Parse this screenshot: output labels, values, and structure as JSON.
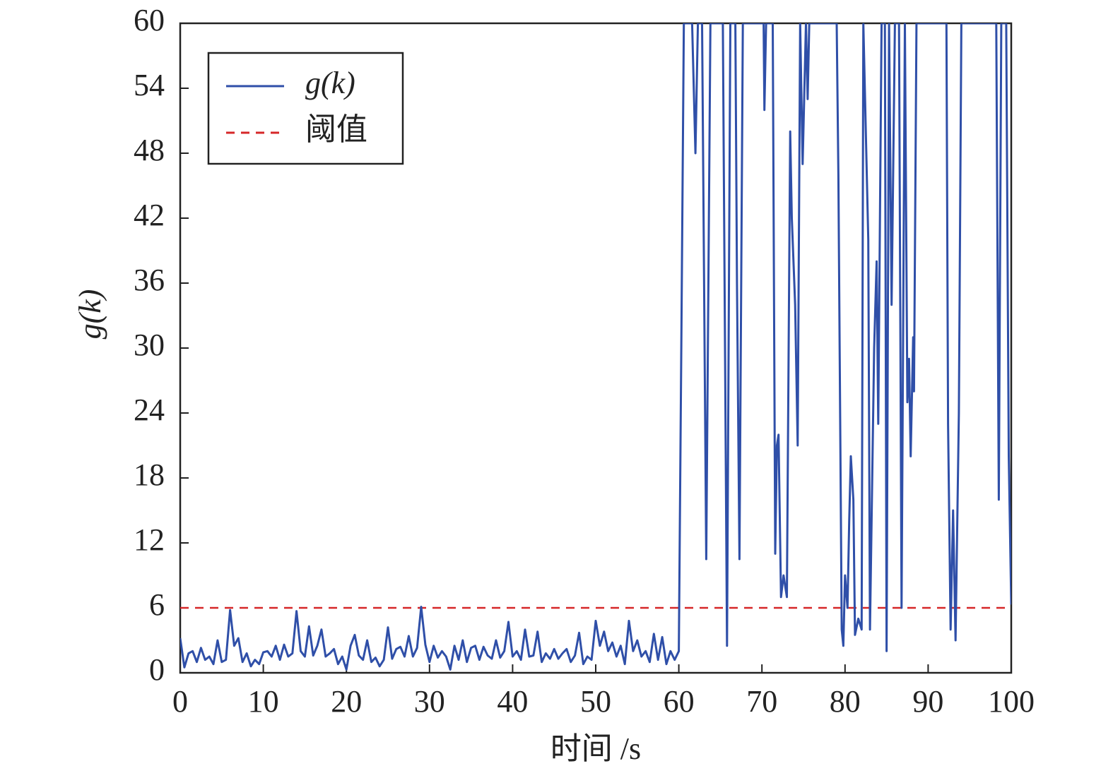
{
  "chart_data": {
    "type": "line",
    "xlabel": "时间 /s",
    "ylabel": "g(k)",
    "xlim": [
      0,
      100
    ],
    "ylim": [
      0,
      60
    ],
    "xticks": [
      0,
      10,
      20,
      30,
      40,
      50,
      60,
      70,
      80,
      90,
      100
    ],
    "yticks": [
      0,
      6,
      12,
      18,
      24,
      30,
      36,
      42,
      48,
      54,
      60
    ],
    "legend": "upper left",
    "x": [
      0,
      0.5,
      1,
      1.5,
      2,
      2.5,
      3,
      3.5,
      4,
      4.5,
      5,
      5.5,
      6,
      6.5,
      7,
      7.5,
      8,
      8.5,
      9,
      9.5,
      10,
      10.5,
      11,
      11.5,
      12,
      12.5,
      13,
      13.5,
      14,
      14.5,
      15,
      15.5,
      16,
      16.5,
      17,
      17.5,
      18,
      18.5,
      19,
      19.5,
      20,
      20.5,
      21,
      21.5,
      22,
      22.5,
      23,
      23.5,
      24,
      24.5,
      25,
      25.5,
      26,
      26.5,
      27,
      27.5,
      28,
      28.5,
      29,
      29.5,
      30,
      30.5,
      31,
      31.5,
      32,
      32.5,
      33,
      33.5,
      34,
      34.5,
      35,
      35.5,
      36,
      36.5,
      37,
      37.5,
      38,
      38.5,
      39,
      39.5,
      40,
      40.5,
      41,
      41.5,
      42,
      42.5,
      43,
      43.5,
      44,
      44.5,
      45,
      45.5,
      46,
      46.5,
      47,
      47.5,
      48,
      48.5,
      49,
      49.5,
      50,
      50.5,
      51,
      51.5,
      52,
      52.5,
      53,
      53.5,
      54,
      54.5,
      55,
      55.5,
      56,
      56.5,
      57,
      57.5,
      58,
      58.5,
      59,
      59.5,
      60,
      60.3,
      60.6,
      61,
      61.6,
      62,
      62.3,
      62.8,
      63.3,
      63.8,
      64.5,
      65.3,
      65.8,
      66.2,
      66.8,
      67,
      67.3,
      67.7,
      70.2,
      70.3,
      70.5,
      71.3,
      71.6,
      71.8,
      72,
      72.3,
      72.6,
      73,
      73.4,
      73.6,
      74,
      74.3,
      74.6,
      74.9,
      75.3,
      75.5,
      75.7,
      79,
      79.2,
      79.6,
      79.8,
      80,
      80.3,
      80.5,
      80.7,
      81,
      81.2,
      81.6,
      82,
      82.2,
      82.8,
      83,
      83.5,
      83.8,
      84,
      84.4,
      84.8,
      85,
      85.3,
      85.6,
      86,
      86.5,
      86.8,
      87.2,
      87.5,
      87.7,
      87.9,
      88.2,
      88.3,
      88.6,
      92.2,
      92.4,
      92.7,
      93,
      93.3,
      93.7,
      94,
      98.2,
      98.5,
      98.8,
      99.4,
      99.7,
      100
    ],
    "series": [
      {
        "name": "g(k)",
        "color": "#2f4fa8",
        "values": [
          3.2,
          0.5,
          1.8,
          2.0,
          1.0,
          2.3,
          1.2,
          1.5,
          0.8,
          3.0,
          1.0,
          1.2,
          5.8,
          2.5,
          3.2,
          1.0,
          1.8,
          0.6,
          1.2,
          0.8,
          1.9,
          2.0,
          1.5,
          2.5,
          1.2,
          2.6,
          1.5,
          1.8,
          5.7,
          2.0,
          1.5,
          4.3,
          1.6,
          2.5,
          4.0,
          1.5,
          1.8,
          2.2,
          0.8,
          1.5,
          0.3,
          2.5,
          3.5,
          1.6,
          1.2,
          3.0,
          1.0,
          1.4,
          0.6,
          1.2,
          4.2,
          1.3,
          2.2,
          2.4,
          1.5,
          3.4,
          1.5,
          2.3,
          6.1,
          2.6,
          1.0,
          2.5,
          1.4,
          2.0,
          1.5,
          0.3,
          2.5,
          1.2,
          3.0,
          1.0,
          2.3,
          2.5,
          1.2,
          2.4,
          1.6,
          1.3,
          3.0,
          1.4,
          2.0,
          4.7,
          1.5,
          2.0,
          1.2,
          4.0,
          1.5,
          1.6,
          3.8,
          1.0,
          1.8,
          1.3,
          2.2,
          1.3,
          1.8,
          2.2,
          1.0,
          1.6,
          3.7,
          0.8,
          1.5,
          1.2,
          4.8,
          2.5,
          3.8,
          2.0,
          2.8,
          1.5,
          2.5,
          0.8,
          4.8,
          2.0,
          3.0,
          1.5,
          2.0,
          1.0,
          3.6,
          1.2,
          3.3,
          0.8,
          2.0,
          1.2,
          2.0,
          30,
          60,
          60,
          60,
          48,
          60,
          60,
          10.5,
          60,
          60,
          60,
          2.5,
          60,
          60,
          36,
          10.5,
          60,
          60,
          52,
          60,
          60,
          11,
          21,
          22,
          7,
          9,
          7,
          50,
          42,
          34,
          21,
          60,
          47,
          60,
          53,
          60,
          60,
          46,
          4,
          2.5,
          9,
          6,
          14,
          20,
          16,
          3.5,
          5,
          4,
          60,
          40,
          4,
          30,
          38,
          23,
          60,
          60,
          2,
          60,
          34,
          60,
          60,
          6,
          60,
          25,
          29,
          20,
          31,
          26,
          60,
          60,
          23,
          4,
          15,
          3,
          24,
          60,
          60,
          16,
          60,
          60,
          20,
          6.3
        ]
      }
    ],
    "hlines": [
      {
        "name": "阈值",
        "value": 6,
        "color": "#d62728",
        "dash": true
      }
    ]
  }
}
